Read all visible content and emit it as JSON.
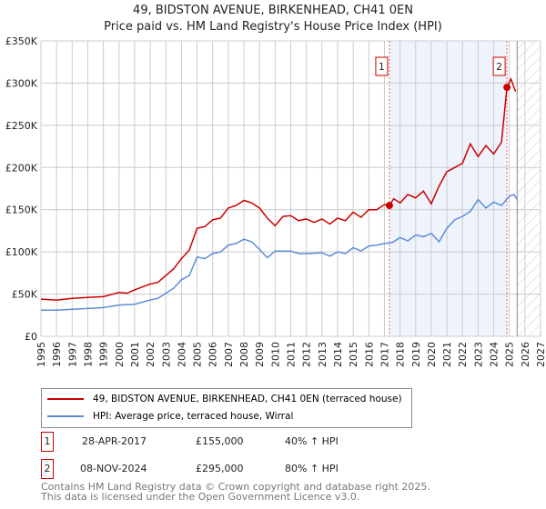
{
  "chart_data": {
    "type": "line",
    "title": "49, BIDSTON AVENUE, BIRKENHEAD, CH41 0EN",
    "subtitle": "Price paid vs. HM Land Registry's House Price Index (HPI)",
    "xlim": [
      1995,
      2027
    ],
    "ylim": [
      0,
      350000
    ],
    "yticks": [
      0,
      50000,
      100000,
      150000,
      200000,
      250000,
      300000,
      350000
    ],
    "ytick_labels": [
      "£0",
      "£50K",
      "£100K",
      "£150K",
      "£200K",
      "£250K",
      "£300K",
      "£350K"
    ],
    "xticks": [
      "1995",
      "1996",
      "1997",
      "1998",
      "1999",
      "2000",
      "2001",
      "2002",
      "2003",
      "2004",
      "2005",
      "2006",
      "2007",
      "2008",
      "2009",
      "2010",
      "2011",
      "2012",
      "2013",
      "2014",
      "2015",
      "2016",
      "2017",
      "2018",
      "2019",
      "2020",
      "2021",
      "2022",
      "2023",
      "2024",
      "2025",
      "2026",
      "2027"
    ],
    "grid": true,
    "shaded_range": [
      2017.32,
      2024.85
    ],
    "forecast_hatch_from": 2025.5,
    "series": [
      {
        "name": "49, BIDSTON AVENUE, BIRKENHEAD, CH41 0EN (terraced house)",
        "color": "#cc0000",
        "x": [
          1995,
          1996,
          1997,
          1998,
          1999,
          2000,
          2000.5,
          2001,
          2002,
          2002.5,
          2003,
          2003.5,
          2004,
          2004.5,
          2005,
          2005.5,
          2006,
          2006.5,
          2007,
          2007.5,
          2008,
          2008.5,
          2009,
          2009.5,
          2010,
          2010.5,
          2011,
          2011.5,
          2012,
          2012.5,
          2013,
          2013.5,
          2014,
          2014.5,
          2015,
          2015.5,
          2016,
          2016.5,
          2017,
          2017.32,
          2017.6,
          2018,
          2018.5,
          2019,
          2019.5,
          2020,
          2020.5,
          2021,
          2021.5,
          2022,
          2022.5,
          2023,
          2023.5,
          2024,
          2024.5,
          2024.85,
          2025.1,
          2025.4
        ],
        "y": [
          44,
          43,
          45,
          46,
          47,
          52,
          51,
          55,
          62,
          64,
          72,
          80,
          92,
          102,
          128,
          130,
          138,
          140,
          152,
          155,
          161,
          158,
          152,
          140,
          131,
          142,
          143,
          137,
          139,
          135,
          139,
          133,
          140,
          137,
          147,
          141,
          150,
          150,
          156,
          155,
          163,
          158,
          168,
          164,
          172,
          157,
          178,
          195,
          200,
          205,
          228,
          213,
          226,
          216,
          230,
          295,
          305,
          290
        ]
      },
      {
        "name": "HPI: Average price, terraced house, Wirral",
        "color": "#5b8dd6",
        "x": [
          1995,
          1996,
          1997,
          1998,
          1999,
          2000,
          2001,
          2002,
          2002.5,
          2003,
          2003.5,
          2004,
          2004.5,
          2005,
          2005.5,
          2006,
          2006.5,
          2007,
          2007.5,
          2008,
          2008.5,
          2009,
          2009.5,
          2010,
          2011,
          2011.5,
          2012,
          2013,
          2013.5,
          2014,
          2014.5,
          2015,
          2015.5,
          2016,
          2016.5,
          2017,
          2017.5,
          2018,
          2018.5,
          2019,
          2019.5,
          2020,
          2020.5,
          2021,
          2021.5,
          2022,
          2022.5,
          2023,
          2023.5,
          2024,
          2024.5,
          2025,
          2025.3,
          2025.5
        ],
        "y": [
          31,
          31,
          32,
          33,
          34,
          37,
          38,
          43,
          45,
          51,
          57,
          67,
          72,
          94,
          92,
          98,
          100,
          108,
          110,
          115,
          112,
          103,
          93,
          101,
          101,
          98,
          98,
          99,
          95,
          100,
          98,
          105,
          101,
          107,
          108,
          110,
          111,
          117,
          113,
          120,
          118,
          122,
          112,
          128,
          138,
          142,
          148,
          162,
          152,
          159,
          155,
          166,
          168,
          162
        ]
      }
    ],
    "y_unit_multiplier": 1000,
    "markers": [
      {
        "label": "1",
        "x": 2017.32,
        "y": 155000
      },
      {
        "label": "2",
        "x": 2024.85,
        "y": 295000
      }
    ]
  },
  "legend": {
    "property": "49, BIDSTON AVENUE, BIRKENHEAD, CH41 0EN (terraced house)",
    "hpi": "HPI: Average price, terraced house, Wirral"
  },
  "sales": [
    {
      "num": "1",
      "date": "28-APR-2017",
      "price": "£155,000",
      "hpi": "40% ↑ HPI"
    },
    {
      "num": "2",
      "date": "08-NOV-2024",
      "price": "£295,000",
      "hpi": "80% ↑ HPI"
    }
  ],
  "footer": {
    "line1": "Contains HM Land Registry data © Crown copyright and database right 2025.",
    "line2": "This data is licensed under the Open Government Licence v3.0."
  }
}
